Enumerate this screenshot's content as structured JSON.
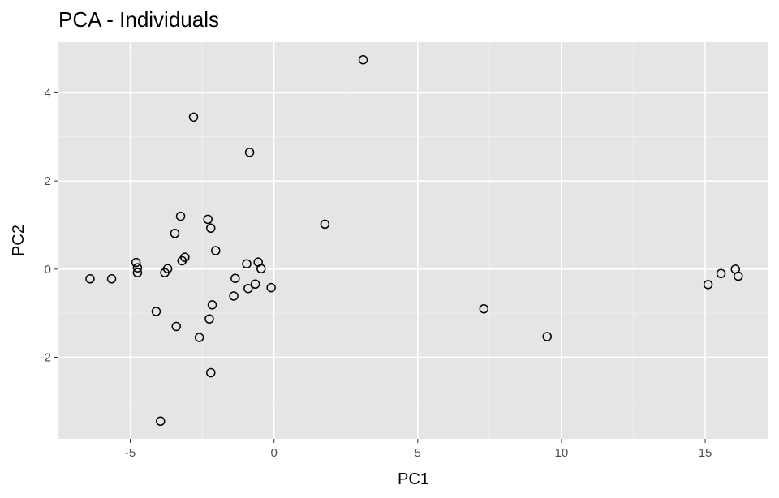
{
  "colors": {
    "panel_background": "#e5e5e5",
    "grid": "#ffffff",
    "point_stroke": "#000000",
    "tick_text": "#4d4d4d"
  },
  "chart_data": {
    "type": "scatter",
    "title": "PCA - Individuals",
    "xlabel": "PC1",
    "ylabel": "PC2",
    "xlim": [
      -7.5,
      17.2
    ],
    "ylim": [
      -3.85,
      5.15
    ],
    "x_ticks": [
      -5,
      0,
      5,
      10,
      15
    ],
    "y_ticks": [
      -2,
      0,
      2,
      4
    ],
    "x_tick_labels": [
      "-5",
      "0",
      "5",
      "10",
      "15"
    ],
    "y_tick_labels": [
      "-2",
      "0",
      "2",
      "4"
    ],
    "grid": true,
    "marker": "open-circle",
    "points": [
      {
        "x": 3.1,
        "y": 4.75
      },
      {
        "x": -2.8,
        "y": 3.45
      },
      {
        "x": -0.85,
        "y": 2.65
      },
      {
        "x": -3.25,
        "y": 1.2
      },
      {
        "x": -2.3,
        "y": 1.13
      },
      {
        "x": 1.77,
        "y": 1.02
      },
      {
        "x": -2.2,
        "y": 0.93
      },
      {
        "x": -3.45,
        "y": 0.81
      },
      {
        "x": -2.03,
        "y": 0.42
      },
      {
        "x": -3.1,
        "y": 0.27
      },
      {
        "x": -3.2,
        "y": 0.19
      },
      {
        "x": -4.8,
        "y": 0.15
      },
      {
        "x": -0.55,
        "y": 0.16
      },
      {
        "x": -0.95,
        "y": 0.12
      },
      {
        "x": -4.75,
        "y": 0.03
      },
      {
        "x": -3.7,
        "y": 0.01
      },
      {
        "x": -0.45,
        "y": 0.01
      },
      {
        "x": -3.8,
        "y": -0.08
      },
      {
        "x": -4.75,
        "y": -0.08
      },
      {
        "x": -6.4,
        "y": -0.22
      },
      {
        "x": -5.65,
        "y": -0.22
      },
      {
        "x": -1.35,
        "y": -0.21
      },
      {
        "x": -0.65,
        "y": -0.34
      },
      {
        "x": -0.1,
        "y": -0.42
      },
      {
        "x": -0.9,
        "y": -0.44
      },
      {
        "x": -1.4,
        "y": -0.61
      },
      {
        "x": -2.15,
        "y": -0.81
      },
      {
        "x": -4.1,
        "y": -0.96
      },
      {
        "x": -2.25,
        "y": -1.13
      },
      {
        "x": -3.4,
        "y": -1.3
      },
      {
        "x": -2.6,
        "y": -1.55
      },
      {
        "x": -2.2,
        "y": -2.35
      },
      {
        "x": -3.95,
        "y": -3.45
      },
      {
        "x": 7.3,
        "y": -0.9
      },
      {
        "x": 9.5,
        "y": -1.53
      },
      {
        "x": 15.1,
        "y": -0.35
      },
      {
        "x": 15.55,
        "y": -0.1
      },
      {
        "x": 16.05,
        "y": 0.0
      },
      {
        "x": 16.15,
        "y": -0.16
      }
    ]
  }
}
